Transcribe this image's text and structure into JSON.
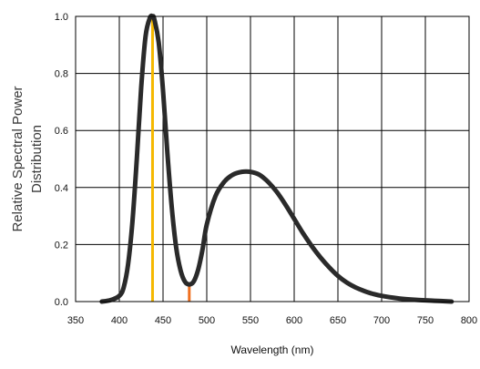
{
  "chart_data": {
    "type": "line",
    "xlabel": "Wavelength (nm)",
    "ylabel_lines": [
      "Relative Spectral Power",
      "Distribution"
    ],
    "xlim": [
      350,
      800
    ],
    "ylim": [
      0,
      1
    ],
    "xticks": [
      350,
      400,
      450,
      500,
      550,
      600,
      650,
      700,
      750,
      800
    ],
    "yticks": [
      0,
      0.2,
      0.4,
      0.6,
      0.8,
      1
    ],
    "ytick_labels": [
      "0.0",
      "0.2",
      "0.4",
      "0.6",
      "0.8",
      "1.0"
    ],
    "grid": true,
    "colors": {
      "curve": "#2a2a2a",
      "grid": "#000000",
      "marker_peak": "#f5b800",
      "marker_valley": "#f07020"
    },
    "series": [
      {
        "x": [
          380,
          390,
          400,
          405,
          410,
          415,
          420,
          425,
          430,
          435,
          438,
          440,
          445,
          450,
          455,
          460,
          465,
          470,
          475,
          480,
          485,
          490,
          495,
          500,
          510,
          520,
          530,
          540,
          550,
          560,
          570,
          580,
          590,
          600,
          610,
          620,
          630,
          640,
          650,
          660,
          670,
          680,
          690,
          700,
          720,
          740,
          760,
          780
        ],
        "y": [
          0.0,
          0.005,
          0.02,
          0.05,
          0.13,
          0.28,
          0.5,
          0.75,
          0.93,
          0.995,
          1.0,
          0.99,
          0.91,
          0.74,
          0.52,
          0.33,
          0.19,
          0.11,
          0.07,
          0.06,
          0.07,
          0.11,
          0.18,
          0.27,
          0.37,
          0.42,
          0.445,
          0.455,
          0.455,
          0.445,
          0.42,
          0.385,
          0.34,
          0.29,
          0.24,
          0.195,
          0.155,
          0.12,
          0.09,
          0.067,
          0.05,
          0.037,
          0.027,
          0.02,
          0.011,
          0.006,
          0.003,
          0.0
        ]
      }
    ],
    "markers": [
      {
        "x": 438,
        "y": 1.0,
        "color": "#f5b800"
      },
      {
        "x": 480,
        "y": 0.06,
        "color": "#f07020"
      }
    ]
  }
}
